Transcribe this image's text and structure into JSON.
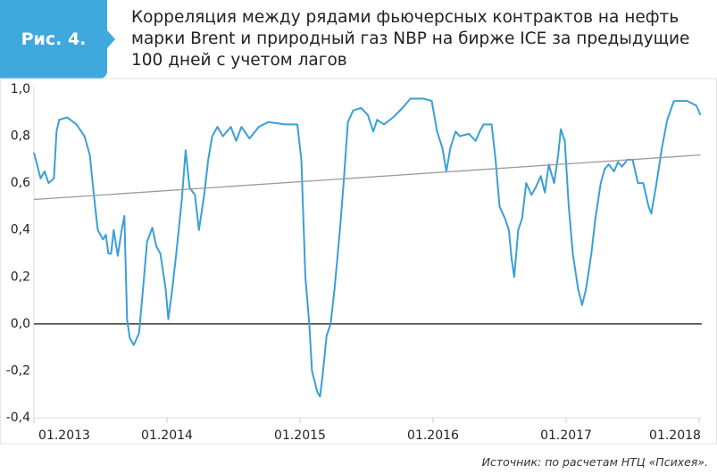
{
  "chart_data": {
    "type": "line",
    "figure_label": "Рис. 4.",
    "title": "Корреляция между рядами фьючерсных контрактов на нефть марки Brent и природный газ NBP на бирже ICE за предыдущие 100 дней с учетом лагов",
    "source": "Источник: по расчетам НТЦ «Психея».",
    "xlim": [
      2013,
      2018.02
    ],
    "xticks": [
      {
        "value": 2013,
        "label": "01.2013"
      },
      {
        "value": 2014,
        "label": "01.2014"
      },
      {
        "value": 2015,
        "label": "01.2015"
      },
      {
        "value": 2016,
        "label": "01.2016"
      },
      {
        "value": 2017,
        "label": "01.2017"
      },
      {
        "value": 2018,
        "label": "01.2018"
      }
    ],
    "ylim": [
      -0.4,
      1.0
    ],
    "yticks": [
      {
        "value": 1.0,
        "label": "1,0"
      },
      {
        "value": 0.8,
        "label": "0,8"
      },
      {
        "value": 0.6,
        "label": "0,6"
      },
      {
        "value": 0.4,
        "label": "0,4"
      },
      {
        "value": 0.2,
        "label": "0,2"
      },
      {
        "value": 0,
        "label": "0,0"
      },
      {
        "value": -0.2,
        "label": "-0,2"
      },
      {
        "value": -0.4,
        "label": "-0,4"
      }
    ],
    "series": [
      {
        "color": "#3a9fd6",
        "x": [
          2013.0,
          2013.05,
          2013.08,
          2013.11,
          2013.15,
          2013.17,
          2013.19,
          2013.25,
          2013.32,
          2013.38,
          2013.42,
          2013.45,
          2013.48,
          2013.52,
          2013.54,
          2013.56,
          2013.58,
          2013.6,
          2013.63,
          2013.66,
          2013.68,
          2013.7,
          2013.72,
          2013.75,
          2013.79,
          2013.82,
          2013.85,
          2013.89,
          2013.92,
          2013.95,
          2013.99,
          2014.01,
          2014.04,
          2014.07,
          2014.11,
          2014.14,
          2014.17,
          2014.21,
          2014.24,
          2014.28,
          2014.31,
          2014.34,
          2014.38,
          2014.42,
          2014.48,
          2014.52,
          2014.56,
          2014.62,
          2014.69,
          2014.76,
          2014.89,
          2014.98,
          2015.01,
          2015.04,
          2015.07,
          2015.09,
          2015.13,
          2015.15,
          2015.17,
          2015.2,
          2015.23,
          2015.26,
          2015.3,
          2015.33,
          2015.36,
          2015.4,
          2015.46,
          2015.51,
          2015.55,
          2015.58,
          2015.63,
          2015.7,
          2015.77,
          2015.83,
          2015.93,
          2015.99,
          2016.03,
          2016.07,
          2016.1,
          2016.13,
          2016.17,
          2016.2,
          2016.27,
          2016.32,
          2016.35,
          2016.38,
          2016.44,
          2016.47,
          2016.5,
          2016.54,
          2016.57,
          2016.59,
          2016.61,
          2016.64,
          2016.67,
          2016.7,
          2016.74,
          2016.77,
          2016.81,
          2016.84,
          2016.87,
          2016.91,
          2016.94,
          2016.96,
          2016.99,
          2017.02,
          2017.05,
          2017.09,
          2017.12,
          2017.15,
          2017.19,
          2017.22,
          2017.26,
          2017.29,
          2017.32,
          2017.36,
          2017.39,
          2017.42,
          2017.46,
          2017.5,
          2017.54,
          2017.58,
          2017.62,
          2017.64,
          2017.68,
          2017.72,
          2017.76,
          2017.81,
          2017.91,
          2017.98,
          2018.01
        ],
        "values": [
          0.73,
          0.62,
          0.65,
          0.6,
          0.62,
          0.82,
          0.87,
          0.88,
          0.85,
          0.8,
          0.72,
          0.55,
          0.4,
          0.36,
          0.38,
          0.3,
          0.3,
          0.4,
          0.29,
          0.4,
          0.46,
          0.02,
          -0.06,
          -0.09,
          -0.04,
          0.15,
          0.35,
          0.41,
          0.33,
          0.3,
          0.15,
          0.02,
          0.15,
          0.3,
          0.52,
          0.74,
          0.58,
          0.55,
          0.4,
          0.55,
          0.7,
          0.8,
          0.84,
          0.8,
          0.84,
          0.78,
          0.84,
          0.79,
          0.84,
          0.86,
          0.85,
          0.85,
          0.7,
          0.2,
          0.0,
          -0.2,
          -0.29,
          -0.31,
          -0.22,
          -0.05,
          0.0,
          0.15,
          0.4,
          0.62,
          0.86,
          0.91,
          0.92,
          0.89,
          0.82,
          0.87,
          0.85,
          0.88,
          0.92,
          0.96,
          0.96,
          0.95,
          0.82,
          0.75,
          0.65,
          0.75,
          0.82,
          0.8,
          0.81,
          0.78,
          0.82,
          0.85,
          0.85,
          0.7,
          0.5,
          0.45,
          0.4,
          0.28,
          0.2,
          0.4,
          0.45,
          0.6,
          0.55,
          0.58,
          0.63,
          0.56,
          0.68,
          0.6,
          0.72,
          0.83,
          0.78,
          0.5,
          0.3,
          0.15,
          0.08,
          0.15,
          0.3,
          0.45,
          0.6,
          0.66,
          0.68,
          0.65,
          0.69,
          0.67,
          0.7,
          0.7,
          0.6,
          0.6,
          0.5,
          0.47,
          0.6,
          0.75,
          0.87,
          0.95,
          0.95,
          0.93,
          0.89
        ]
      },
      {
        "color": "#9a9a9a",
        "x": [
          2013.0,
          2018.01
        ],
        "values": [
          0.53,
          0.72
        ]
      }
    ]
  }
}
